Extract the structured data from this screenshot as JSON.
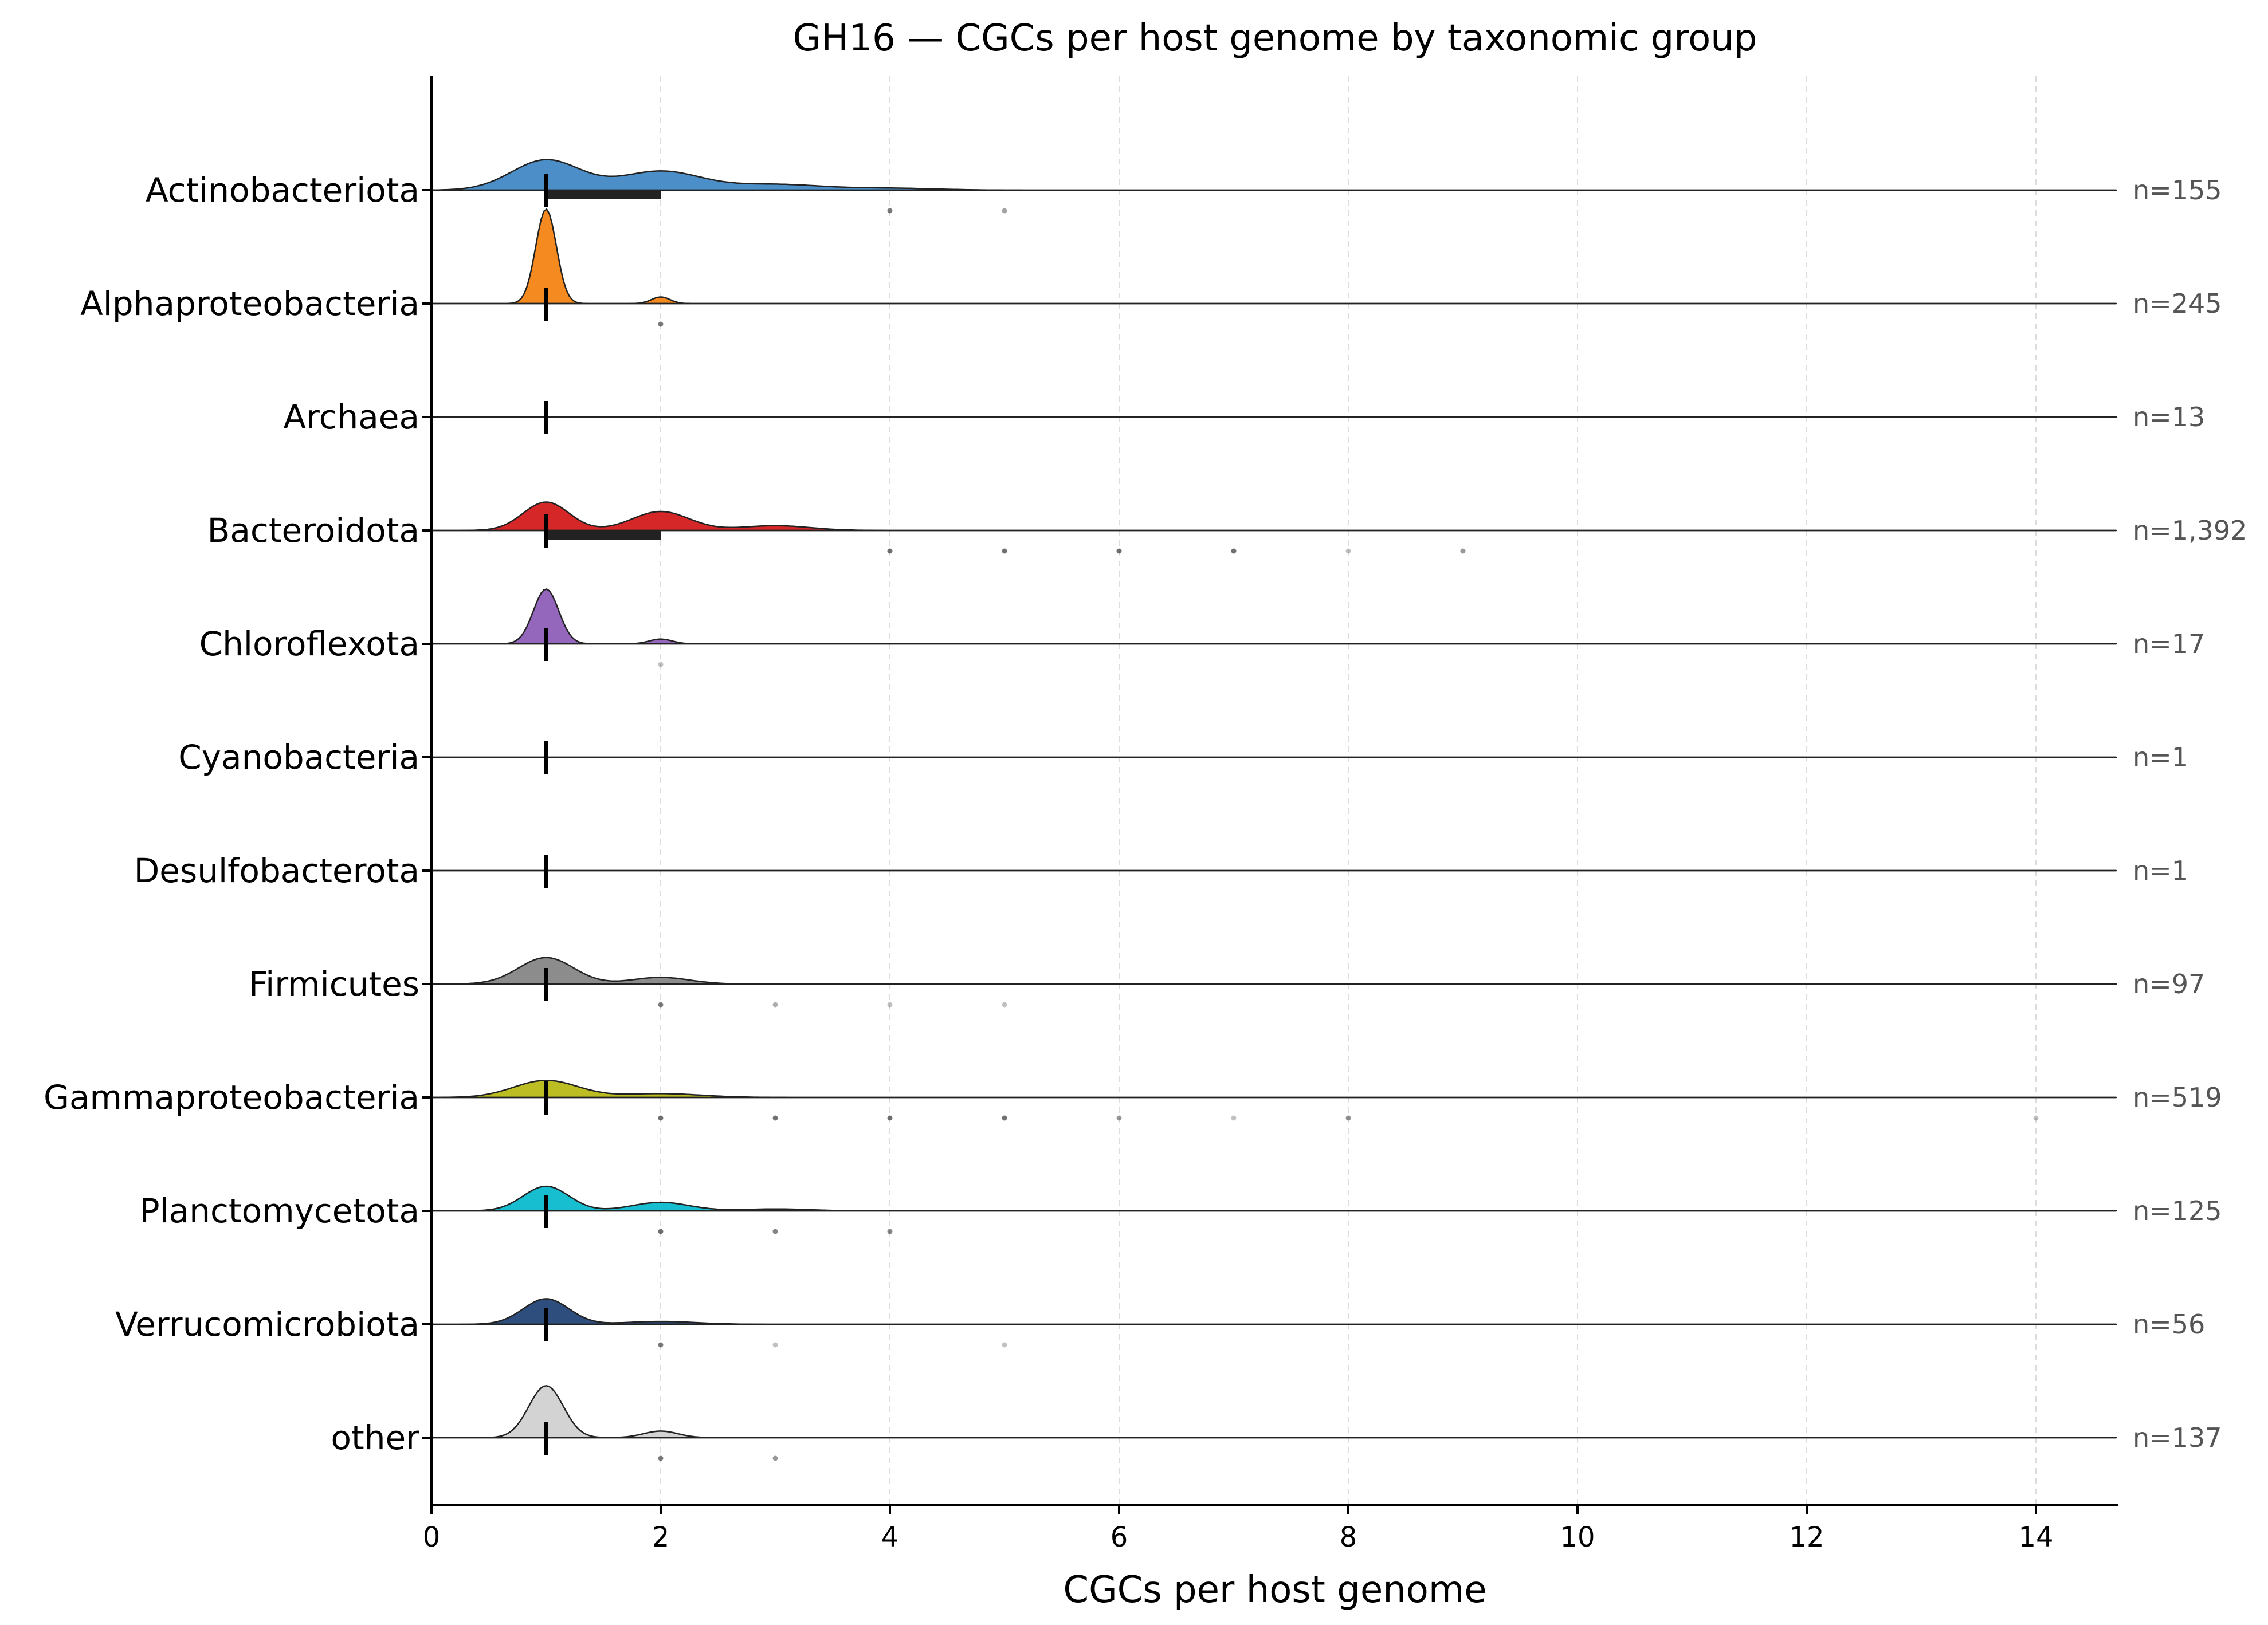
{
  "chart_data": {
    "type": "ridgeline",
    "title": "GH16 — CGCs per host genome by taxonomic group",
    "xlabel": "CGCs per host genome",
    "ylabel": "",
    "xlim": [
      0,
      14.7
    ],
    "xticks": [
      0,
      2,
      4,
      6,
      8,
      10,
      12,
      14
    ],
    "grid": "vertical dashed",
    "groups": [
      {
        "name": "Actinobacteriota",
        "n_label": "n=155",
        "color": "#4C8FC8",
        "median": 1,
        "iqr": [
          1,
          2
        ],
        "density": {
          "peaks": [
            {
              "mu": 1.0,
              "sigma": 0.3,
              "h": 0.32
            },
            {
              "mu": 2.0,
              "sigma": 0.35,
              "h": 0.2
            },
            {
              "mu": 3.0,
              "sigma": 0.4,
              "h": 0.06
            },
            {
              "mu": 4.0,
              "sigma": 0.4,
              "h": 0.02
            }
          ]
        },
        "outliers": [
          {
            "x": 4,
            "alpha": 0.65
          },
          {
            "x": 5,
            "alpha": 0.45
          }
        ]
      },
      {
        "name": "Alphaproteobacteria",
        "n_label": "n=245",
        "color": "#F58A20",
        "median": 1,
        "iqr": [
          1,
          1
        ],
        "density": {
          "peaks": [
            {
              "mu": 1.0,
              "sigma": 0.09,
              "h": 1.0
            },
            {
              "mu": 2.0,
              "sigma": 0.08,
              "h": 0.07
            }
          ]
        },
        "outliers": [
          {
            "x": 2,
            "alpha": 0.65
          }
        ]
      },
      {
        "name": "Archaea",
        "n_label": "n=13",
        "color": "#2CA02C",
        "median": 1,
        "iqr": [
          1,
          1
        ],
        "density": {
          "peaks": []
        },
        "outliers": []
      },
      {
        "name": "Bacteroidota",
        "n_label": "n=1,392",
        "color": "#D62728",
        "median": 1,
        "iqr": [
          1,
          2
        ],
        "density": {
          "peaks": [
            {
              "mu": 1.0,
              "sigma": 0.2,
              "h": 0.3
            },
            {
              "mu": 2.0,
              "sigma": 0.25,
              "h": 0.2
            },
            {
              "mu": 3.0,
              "sigma": 0.3,
              "h": 0.05
            }
          ]
        },
        "outliers": [
          {
            "x": 4,
            "alpha": 0.7
          },
          {
            "x": 5,
            "alpha": 0.7
          },
          {
            "x": 6,
            "alpha": 0.7
          },
          {
            "x": 7,
            "alpha": 0.7
          },
          {
            "x": 8,
            "alpha": 0.3
          },
          {
            "x": 9,
            "alpha": 0.5
          }
        ]
      },
      {
        "name": "Chloroflexota",
        "n_label": "n=17",
        "color": "#9467BD",
        "median": 1,
        "iqr": [
          1,
          1
        ],
        "density": {
          "peaks": [
            {
              "mu": 1.0,
              "sigma": 0.11,
              "h": 0.58
            },
            {
              "mu": 2.0,
              "sigma": 0.1,
              "h": 0.05
            }
          ]
        },
        "outliers": [
          {
            "x": 2,
            "alpha": 0.3
          }
        ]
      },
      {
        "name": "Cyanobacteria",
        "n_label": "n=1",
        "color": "#8C564B",
        "median": 1,
        "iqr": [
          1,
          1
        ],
        "density": {
          "peaks": []
        },
        "outliers": []
      },
      {
        "name": "Desulfobacterota",
        "n_label": "n=1",
        "color": "#E377C2",
        "median": 1,
        "iqr": [
          1,
          1
        ],
        "density": {
          "peaks": []
        },
        "outliers": []
      },
      {
        "name": "Firmicutes",
        "n_label": "n=97",
        "color": "#8C8C8C",
        "median": 1,
        "iqr": [
          1,
          1
        ],
        "density": {
          "peaks": [
            {
              "mu": 1.0,
              "sigma": 0.24,
              "h": 0.28
            },
            {
              "mu": 2.0,
              "sigma": 0.25,
              "h": 0.07
            }
          ]
        },
        "outliers": [
          {
            "x": 2,
            "alpha": 0.65
          },
          {
            "x": 3,
            "alpha": 0.4
          },
          {
            "x": 4,
            "alpha": 0.3
          },
          {
            "x": 5,
            "alpha": 0.3
          }
        ]
      },
      {
        "name": "Gammaproteobacteria",
        "n_label": "n=519",
        "color": "#BCBD22",
        "median": 1,
        "iqr": [
          1,
          1
        ],
        "density": {
          "peaks": [
            {
              "mu": 1.0,
              "sigma": 0.28,
              "h": 0.18
            },
            {
              "mu": 2.0,
              "sigma": 0.35,
              "h": 0.04
            }
          ]
        },
        "outliers": [
          {
            "x": 2,
            "alpha": 0.7
          },
          {
            "x": 3,
            "alpha": 0.7
          },
          {
            "x": 4,
            "alpha": 0.7
          },
          {
            "x": 5,
            "alpha": 0.7
          },
          {
            "x": 6,
            "alpha": 0.5
          },
          {
            "x": 7,
            "alpha": 0.3
          },
          {
            "x": 8,
            "alpha": 0.55
          },
          {
            "x": 14,
            "alpha": 0.3
          }
        ]
      },
      {
        "name": "Planctomycetota",
        "n_label": "n=125",
        "color": "#17BECF",
        "median": 1,
        "iqr": [
          1,
          1
        ],
        "density": {
          "peaks": [
            {
              "mu": 1.0,
              "sigma": 0.2,
              "h": 0.26
            },
            {
              "mu": 2.0,
              "sigma": 0.25,
              "h": 0.09
            },
            {
              "mu": 3.0,
              "sigma": 0.3,
              "h": 0.02
            }
          ]
        },
        "outliers": [
          {
            "x": 2,
            "alpha": 0.7
          },
          {
            "x": 3,
            "alpha": 0.6
          },
          {
            "x": 4,
            "alpha": 0.6
          }
        ]
      },
      {
        "name": "Verrucomicrobiota",
        "n_label": "n=56",
        "color": "#2E4E7E",
        "median": 1,
        "iqr": [
          1,
          1
        ],
        "density": {
          "peaks": [
            {
              "mu": 1.0,
              "sigma": 0.2,
              "h": 0.27
            },
            {
              "mu": 2.0,
              "sigma": 0.3,
              "h": 0.03
            }
          ]
        },
        "outliers": [
          {
            "x": 2,
            "alpha": 0.65
          },
          {
            "x": 3,
            "alpha": 0.3
          },
          {
            "x": 5,
            "alpha": 0.3
          }
        ]
      },
      {
        "name": "other",
        "n_label": "n=137",
        "color": "#D3D3D3",
        "median": 1,
        "iqr": [
          1,
          1
        ],
        "density": {
          "peaks": [
            {
              "mu": 1.0,
              "sigma": 0.15,
              "h": 0.55
            },
            {
              "mu": 2.0,
              "sigma": 0.15,
              "h": 0.07
            }
          ]
        },
        "outliers": [
          {
            "x": 2,
            "alpha": 0.65
          },
          {
            "x": 3,
            "alpha": 0.5
          }
        ]
      }
    ]
  }
}
